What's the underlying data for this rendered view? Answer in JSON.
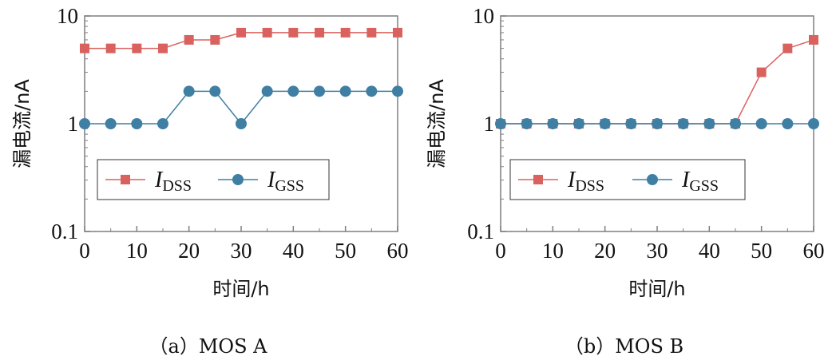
{
  "colors": {
    "idss": "#d9625f",
    "igss": "#3f7fa3",
    "axis": "#7f7f7f"
  },
  "chart_data": [
    {
      "type": "line",
      "caption": "（a）MOS A",
      "xlabel": "时间/h",
      "ylabel": "漏电流/nA",
      "x": [
        0,
        5,
        10,
        15,
        20,
        25,
        30,
        35,
        40,
        45,
        50,
        55,
        60
      ],
      "xticks": [
        0,
        10,
        20,
        30,
        40,
        50,
        60
      ],
      "xticklabels": [
        "0",
        "10",
        "20",
        "30",
        "40",
        "50",
        "60"
      ],
      "xlim": [
        0,
        60
      ],
      "yscale": "log",
      "ylim": [
        0.1,
        10
      ],
      "yticks": [
        0.1,
        1,
        10
      ],
      "yticklabels": [
        "0.1",
        "1",
        "10"
      ],
      "grid": false,
      "legend_position": "center-left",
      "series": [
        {
          "name": "I",
          "subscript": "DSS",
          "marker": "square",
          "color": "#d9625f",
          "values": [
            5,
            5,
            5,
            5,
            6,
            6,
            7,
            7,
            7,
            7,
            7,
            7,
            7
          ]
        },
        {
          "name": "I",
          "subscript": "GSS",
          "marker": "circle",
          "color": "#3f7fa3",
          "values": [
            1,
            1,
            1,
            1,
            2,
            2,
            1,
            2,
            2,
            2,
            2,
            2,
            2
          ]
        }
      ]
    },
    {
      "type": "line",
      "caption": "（b）MOS B",
      "xlabel": "时间/h",
      "ylabel": "漏电流/nA",
      "x": [
        0,
        5,
        10,
        15,
        20,
        25,
        30,
        35,
        40,
        45,
        50,
        55,
        60
      ],
      "xticks": [
        0,
        10,
        20,
        30,
        40,
        50,
        60
      ],
      "xticklabels": [
        "0",
        "10",
        "20",
        "30",
        "40",
        "50",
        "60"
      ],
      "xlim": [
        0,
        60
      ],
      "yscale": "log",
      "ylim": [
        0.1,
        10
      ],
      "yticks": [
        0.1,
        1,
        10
      ],
      "yticklabels": [
        "0.1",
        "1",
        "10"
      ],
      "grid": false,
      "legend_position": "center-right",
      "series": [
        {
          "name": "I",
          "subscript": "DSS",
          "marker": "square",
          "color": "#d9625f",
          "values": [
            1,
            1,
            1,
            1,
            1,
            1,
            1,
            1,
            1,
            1,
            3,
            5,
            6
          ]
        },
        {
          "name": "I",
          "subscript": "GSS",
          "marker": "circle",
          "color": "#3f7fa3",
          "values": [
            1,
            1,
            1,
            1,
            1,
            1,
            1,
            1,
            1,
            1,
            1,
            1,
            1
          ]
        }
      ]
    }
  ]
}
